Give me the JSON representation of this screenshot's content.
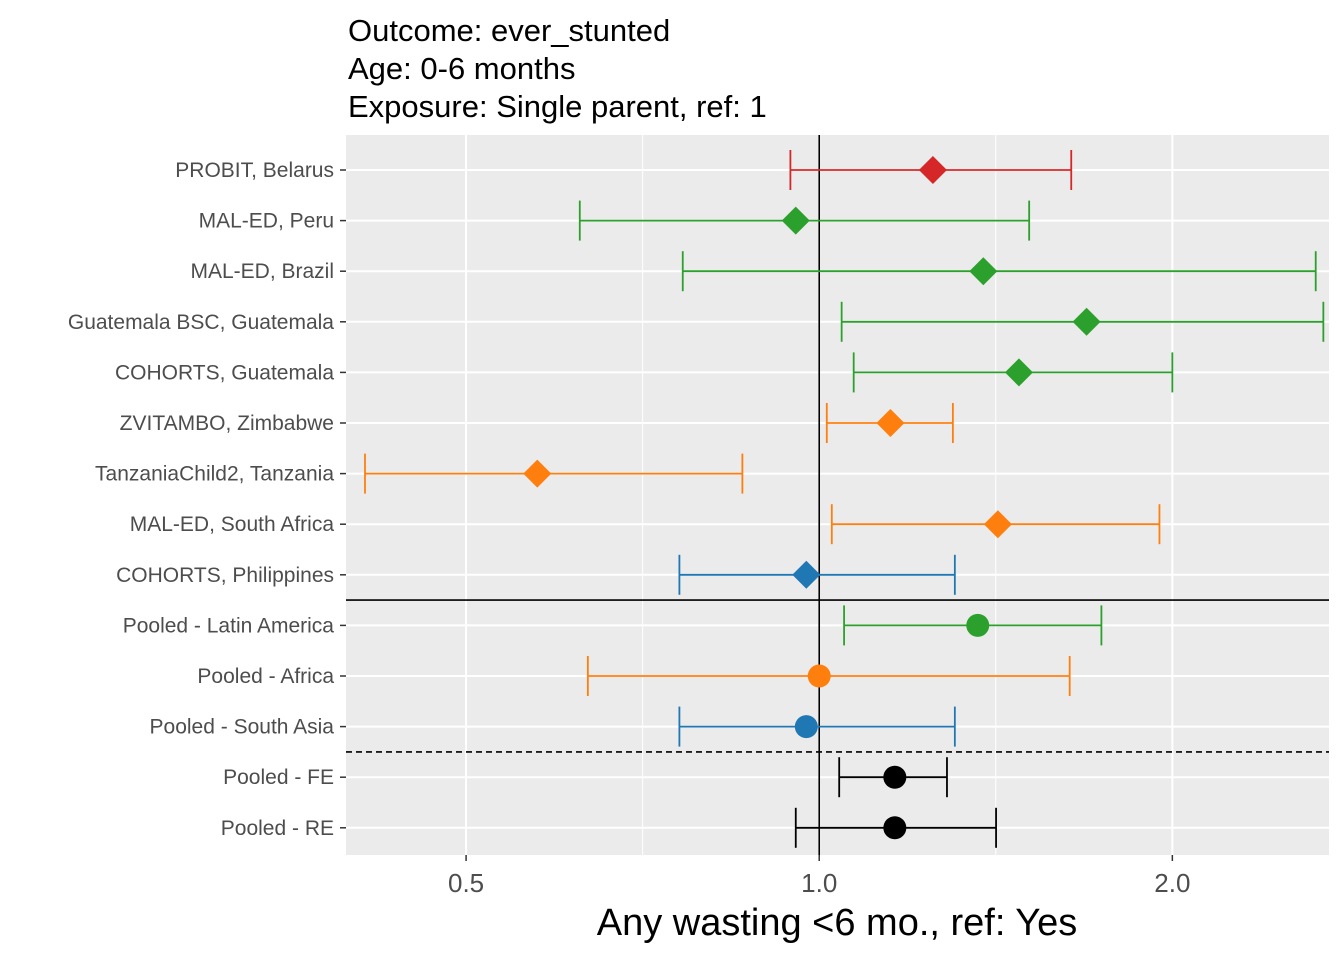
{
  "chart_data": {
    "type": "forest",
    "title_lines": [
      "Outcome: ever_stunted",
      "Age: 0-6 months",
      "Exposure: Single parent, ref: 1"
    ],
    "xlabel": "Any wasting  <6 mo., ref: Yes",
    "x_scale": "log2",
    "xlim": [
      0.395,
      2.72
    ],
    "x_ticks": [
      0.5,
      1.0,
      2.0
    ],
    "x_tick_labels": [
      "0.5",
      "1.0",
      "2.0"
    ],
    "reference_line": 1.0,
    "grid": true,
    "colors": {
      "Europe": "#d62728",
      "Latin America": "#2ca02c",
      "Africa": "#ff7f0e",
      "Asia": "#1f77b4",
      "Overall": "#000000",
      "panel": "#ebebeb",
      "grid": "#ffffff"
    },
    "rows": [
      {
        "label": "PROBIT, Belarus",
        "est": 1.25,
        "lo": 0.945,
        "hi": 1.64,
        "group": "Europe",
        "shape": "diamond"
      },
      {
        "label": "MAL-ED, Peru",
        "est": 0.955,
        "lo": 0.625,
        "hi": 1.51,
        "group": "Latin America",
        "shape": "diamond"
      },
      {
        "label": "MAL-ED, Brazil",
        "est": 1.38,
        "lo": 0.765,
        "hi": 2.65,
        "group": "Latin America",
        "shape": "diamond"
      },
      {
        "label": "Guatemala BSC, Guatemala",
        "est": 1.69,
        "lo": 1.045,
        "hi": 2.69,
        "group": "Latin America",
        "shape": "diamond"
      },
      {
        "label": "COHORTS, Guatemala",
        "est": 1.48,
        "lo": 1.07,
        "hi": 2.0,
        "group": "Latin America",
        "shape": "diamond"
      },
      {
        "label": "ZVITAMBO, Zimbabwe",
        "est": 1.15,
        "lo": 1.015,
        "hi": 1.3,
        "group": "Africa",
        "shape": "diamond"
      },
      {
        "label": "TanzaniaChild2, Tanzania",
        "est": 0.575,
        "lo": 0.41,
        "hi": 0.86,
        "group": "Africa",
        "shape": "diamond"
      },
      {
        "label": "MAL-ED, South Africa",
        "est": 1.42,
        "lo": 1.025,
        "hi": 1.95,
        "group": "Africa",
        "shape": "diamond"
      },
      {
        "label": "COHORTS, Philippines",
        "est": 0.975,
        "lo": 0.76,
        "hi": 1.305,
        "group": "Asia",
        "shape": "diamond"
      },
      {
        "label": "Pooled - Latin America",
        "est": 1.365,
        "lo": 1.05,
        "hi": 1.74,
        "group": "Latin America",
        "shape": "circle"
      },
      {
        "label": "Pooled - Africa",
        "est": 1.0,
        "lo": 0.635,
        "hi": 1.635,
        "group": "Africa",
        "shape": "circle"
      },
      {
        "label": "Pooled - South Asia",
        "est": 0.975,
        "lo": 0.76,
        "hi": 1.305,
        "group": "Asia",
        "shape": "circle"
      },
      {
        "label": "Pooled - FE",
        "est": 1.16,
        "lo": 1.04,
        "hi": 1.285,
        "group": "Overall",
        "shape": "circle"
      },
      {
        "label": "Pooled - RE",
        "est": 1.16,
        "lo": 0.955,
        "hi": 1.415,
        "group": "Overall",
        "shape": "circle"
      }
    ],
    "separators": [
      {
        "after_row": "COHORTS, Philippines",
        "style": "solid"
      },
      {
        "after_row": "Pooled - South Asia",
        "style": "dashed"
      }
    ]
  }
}
